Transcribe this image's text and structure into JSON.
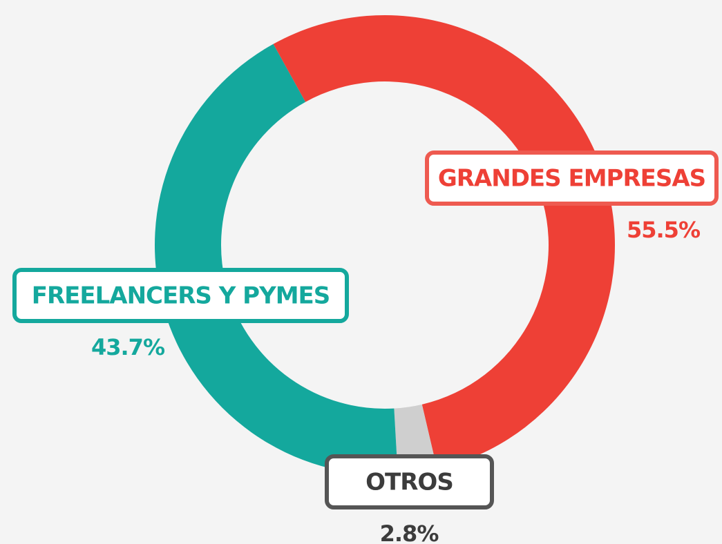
{
  "chart_data": {
    "type": "pie",
    "donut": true,
    "categories": [
      "GRANDES EMPRESAS",
      "OTROS",
      "FREELANCERS Y PYMES"
    ],
    "values": [
      55.5,
      2.8,
      43.7
    ],
    "value_labels": [
      "55.5%",
      "2.8%",
      "43.7%"
    ],
    "colors": [
      "#ee4036",
      "#cfcfcf",
      "#14a89d"
    ]
  }
}
